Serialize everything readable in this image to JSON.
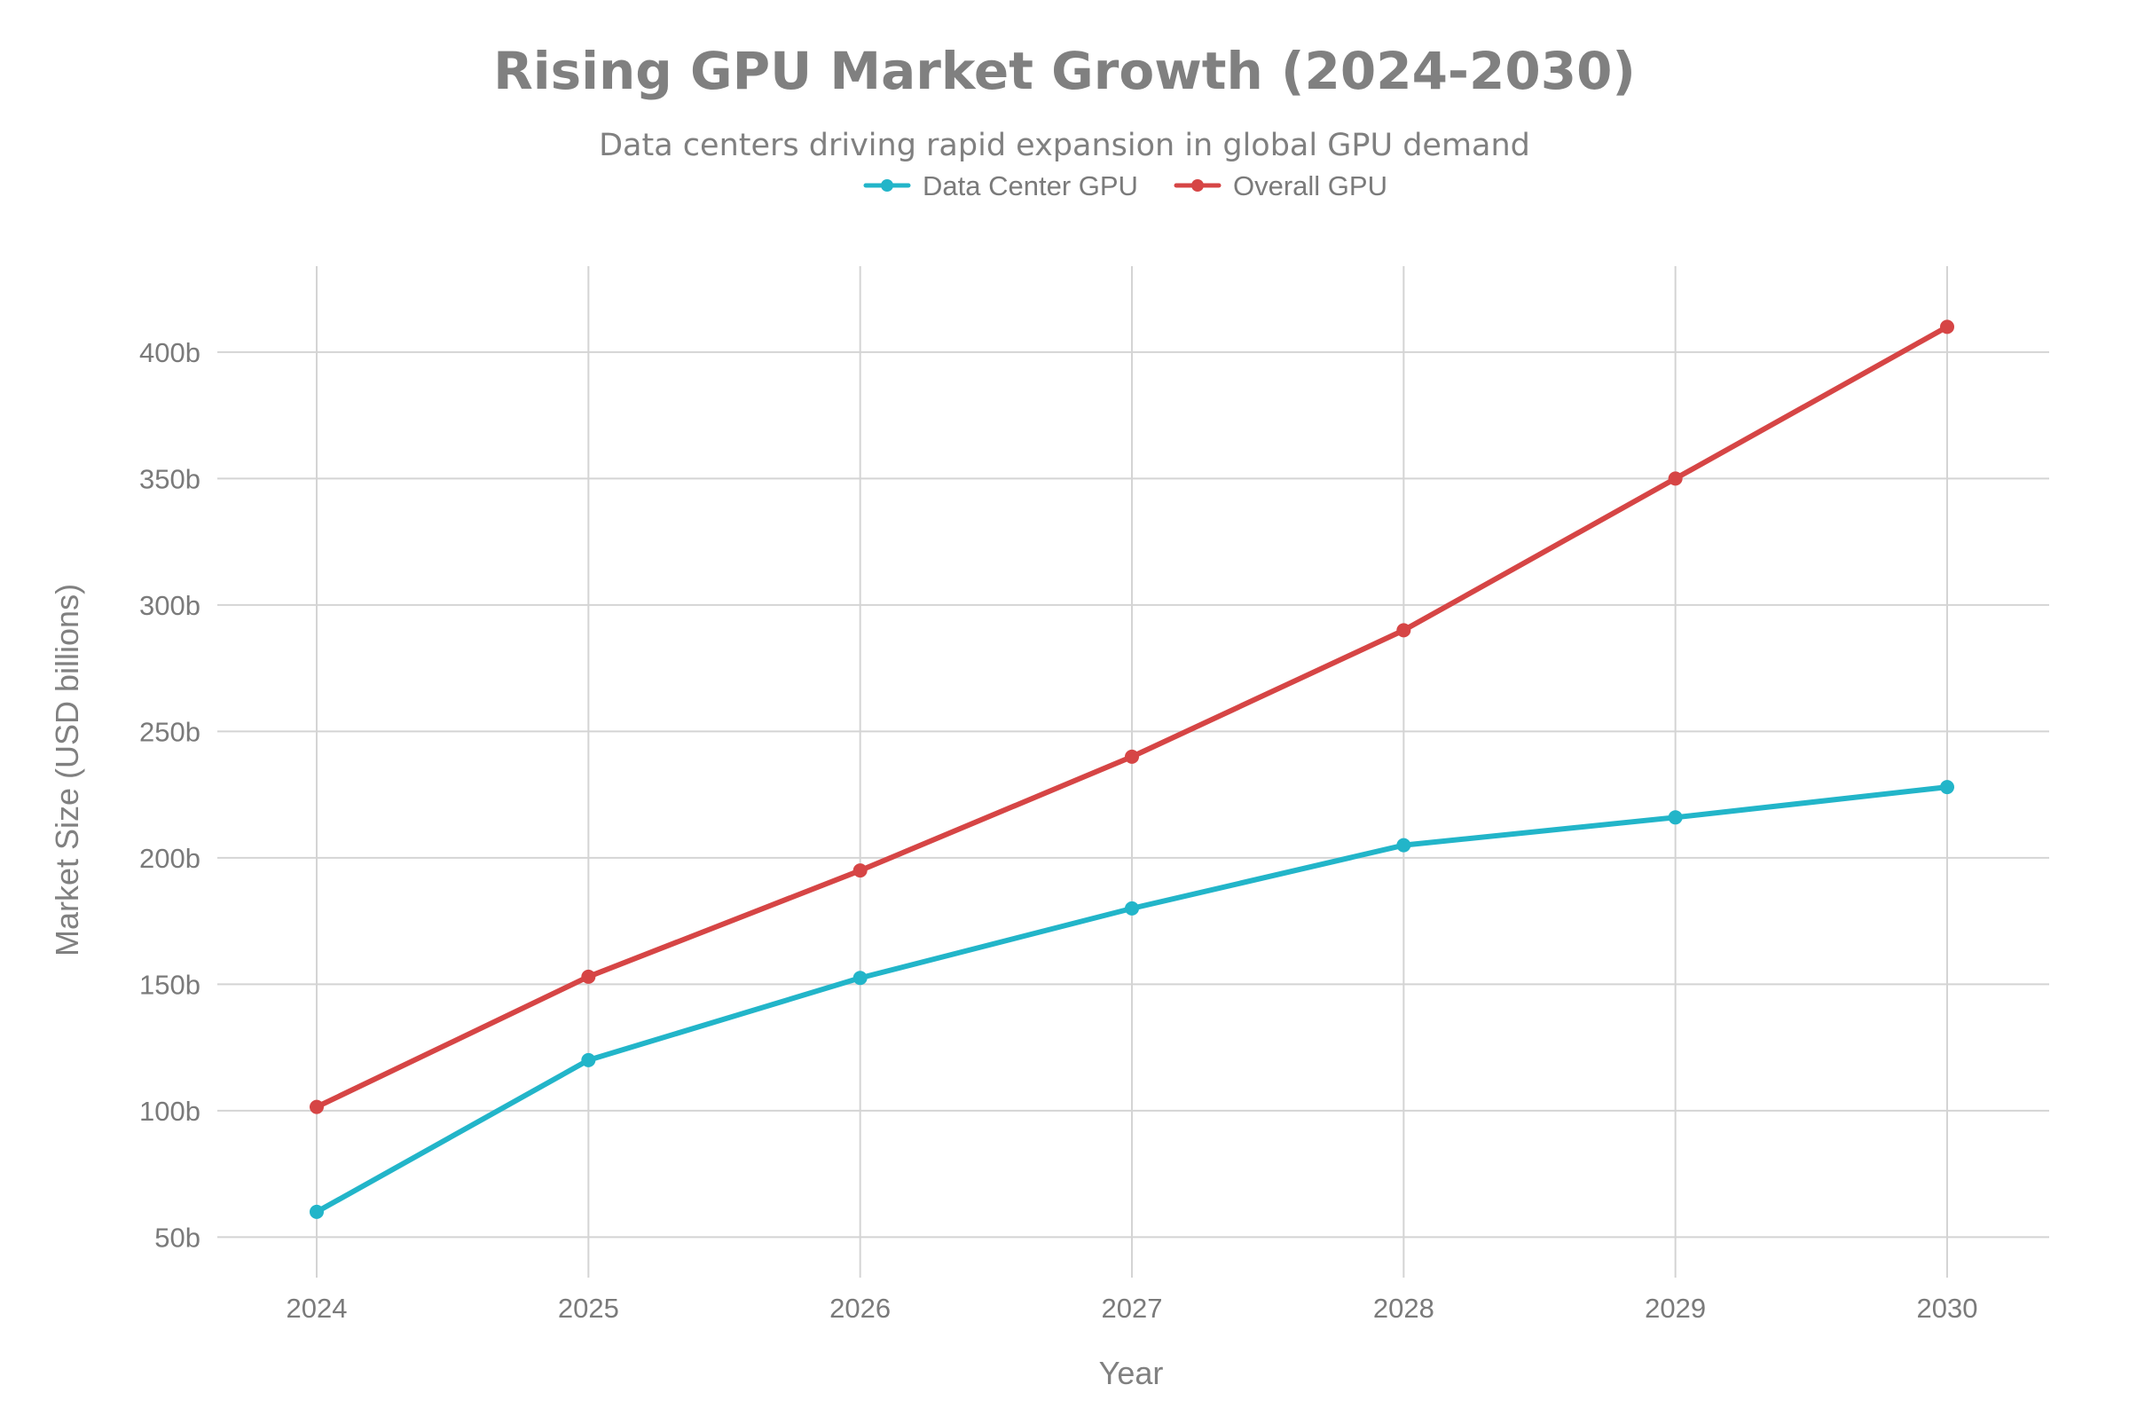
{
  "chart_data": {
    "type": "line",
    "title": "Rising GPU Market Growth (2024-2030)",
    "subtitle": "Data centers driving rapid expansion in global GPU demand",
    "xlabel": "Year",
    "ylabel": "Market Size (USD billions)",
    "x": [
      "2024",
      "2025",
      "2026",
      "2027",
      "2028",
      "2029",
      "2030"
    ],
    "y_ticks": [
      "50b",
      "100b",
      "150b",
      "200b",
      "250b",
      "300b",
      "350b",
      "400b"
    ],
    "y_tick_values": [
      50,
      100,
      150,
      200,
      250,
      300,
      350,
      400
    ],
    "ylim": [
      34,
      434
    ],
    "grid": true,
    "legend_position": "top-center",
    "series": [
      {
        "name": "Data Center GPU",
        "color": "#22b5c9",
        "values": [
          60,
          120,
          152.5,
          180,
          205,
          216,
          228
        ]
      },
      {
        "name": "Overall GPU",
        "color": "#d64545",
        "values": [
          101.5,
          153,
          195,
          240,
          290,
          350,
          410
        ]
      }
    ]
  }
}
